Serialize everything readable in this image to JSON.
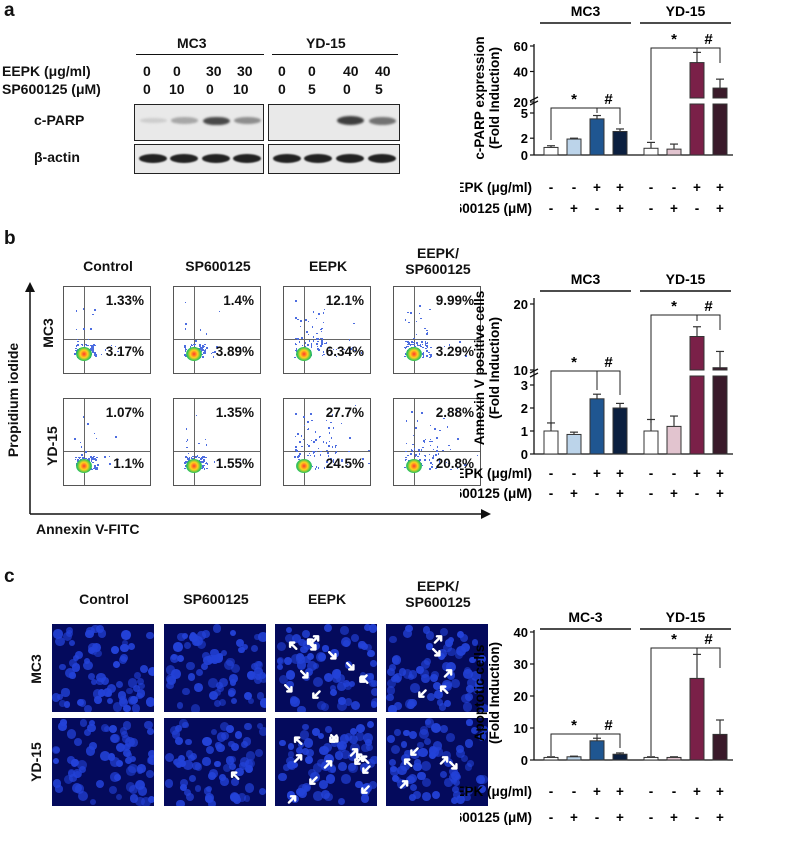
{
  "panel_a": {
    "letter": "a",
    "blot": {
      "groups": [
        "MC3",
        "YD-15"
      ],
      "row_labels": [
        "EEPK (μg/ml)",
        "SP600125 (μM)"
      ],
      "eepk_values": [
        "0",
        "0",
        "30",
        "30",
        "0",
        "0",
        "40",
        "40"
      ],
      "sp_values": [
        "0",
        "10",
        "0",
        "10",
        "0",
        "5",
        "0",
        "5"
      ],
      "bands": [
        "c-PARP",
        "β-actin"
      ],
      "cparp_intensity": [
        0.12,
        0.3,
        0.75,
        0.42,
        0.0,
        0.0,
        0.8,
        0.55
      ]
    }
  },
  "panel_b": {
    "letter": "b",
    "col_labels": [
      "Control",
      "SP600125",
      "EEPK",
      "EEPK/\nSP600125"
    ],
    "row_labels": [
      "MC3",
      "YD-15"
    ],
    "y_axis_label": "Propidium iodide",
    "x_axis_label": "Annexin V-FITC",
    "quadrants": {
      "MC3": [
        [
          "1.33%",
          "3.17%"
        ],
        [
          "1.4%",
          "3.89%"
        ],
        [
          "12.1%",
          "6.34%"
        ],
        [
          "9.99%",
          "3.29%"
        ]
      ],
      "YD-15": [
        [
          "1.07%",
          "1.1%"
        ],
        [
          "1.35%",
          "1.55%"
        ],
        [
          "27.7%",
          "24.5%"
        ],
        [
          "2.88%",
          "20.8%"
        ]
      ]
    }
  },
  "panel_c": {
    "letter": "c",
    "col_labels": [
      "Control",
      "SP600125",
      "EEPK",
      "EEPK/\nSP600125"
    ],
    "row_labels": [
      "MC3",
      "YD-15"
    ]
  },
  "treatment_rows": {
    "labels": [
      "EEPK (μg/ml)",
      "SP600125 (μM)"
    ],
    "eepk": [
      "-",
      "-",
      "+",
      "+",
      "-",
      "-",
      "+",
      "+"
    ],
    "sp": [
      "-",
      "+",
      "-",
      "+",
      "-",
      "+",
      "-",
      "+"
    ]
  },
  "colors": [
    "#ffffff",
    "#bcd4ea",
    "#1f5691",
    "#0b1f3f",
    "#ffffff",
    "#e2c4cf",
    "#7a2048",
    "#3a1a2a"
  ],
  "chart_data": [
    {
      "type": "bar",
      "panel": "a",
      "ylabel": "c-PARP expression\n(Fold Induction)",
      "groups": [
        "MC3",
        "YD-15"
      ],
      "categories": [
        "1",
        "2",
        "3",
        "4",
        "5",
        "6",
        "7",
        "8"
      ],
      "values": [
        0.9,
        1.9,
        4.3,
        2.8,
        0.8,
        0.7,
        47,
        27
      ],
      "errors": [
        0.2,
        0.1,
        0.4,
        0.3,
        0.7,
        0.6,
        8,
        7
      ],
      "broken_axis": true,
      "yticks_lower": [
        "0",
        "2",
        "5"
      ],
      "yticks_upper": [
        "20",
        "40",
        "60"
      ],
      "significance": [
        {
          "between": [
            0,
            2
          ],
          "mark": "*"
        },
        {
          "between": [
            2,
            3
          ],
          "mark": "#"
        },
        {
          "between": [
            4,
            6
          ],
          "mark": "*"
        },
        {
          "between": [
            6,
            7
          ],
          "mark": "#"
        }
      ]
    },
    {
      "type": "bar",
      "panel": "b",
      "ylabel": "Annexin V positive cells\n(Fold Induction)",
      "groups": [
        "MC3",
        "YD-15"
      ],
      "categories": [
        "1",
        "2",
        "3",
        "4",
        "5",
        "6",
        "7",
        "8"
      ],
      "values": [
        1.0,
        0.85,
        2.4,
        2.0,
        1.0,
        1.2,
        15.0,
        10.2
      ],
      "errors": [
        0.35,
        0.1,
        0.2,
        0.2,
        0.5,
        0.45,
        1.5,
        2.5
      ],
      "broken_axis": true,
      "yticks_lower": [
        "0",
        "1",
        "2",
        "3"
      ],
      "yticks_upper": [
        "10",
        "20"
      ],
      "significance": [
        {
          "between": [
            0,
            2
          ],
          "mark": "*"
        },
        {
          "between": [
            2,
            3
          ],
          "mark": "#"
        },
        {
          "between": [
            4,
            6
          ],
          "mark": "*"
        },
        {
          "between": [
            6,
            7
          ],
          "mark": "#"
        }
      ]
    },
    {
      "type": "bar",
      "panel": "c",
      "ylabel": "Apoptotic cells\n(Fold Induction)",
      "groups": [
        "MC-3",
        "YD-15"
      ],
      "categories": [
        "1",
        "2",
        "3",
        "4",
        "5",
        "6",
        "7",
        "8"
      ],
      "values": [
        0.8,
        1.0,
        6.0,
        1.8,
        0.8,
        0.8,
        25.5,
        8.0
      ],
      "errors": [
        0.2,
        0.2,
        0.8,
        0.4,
        0.2,
        0.2,
        7.5,
        4.5
      ],
      "ylim": [
        0,
        40
      ],
      "yticks": [
        "0",
        "10",
        "20",
        "30",
        "40"
      ],
      "significance": [
        {
          "between": [
            0,
            2
          ],
          "mark": "*"
        },
        {
          "between": [
            2,
            3
          ],
          "mark": "#"
        },
        {
          "between": [
            4,
            6
          ],
          "mark": "*"
        },
        {
          "between": [
            6,
            7
          ],
          "mark": "#"
        }
      ]
    }
  ]
}
